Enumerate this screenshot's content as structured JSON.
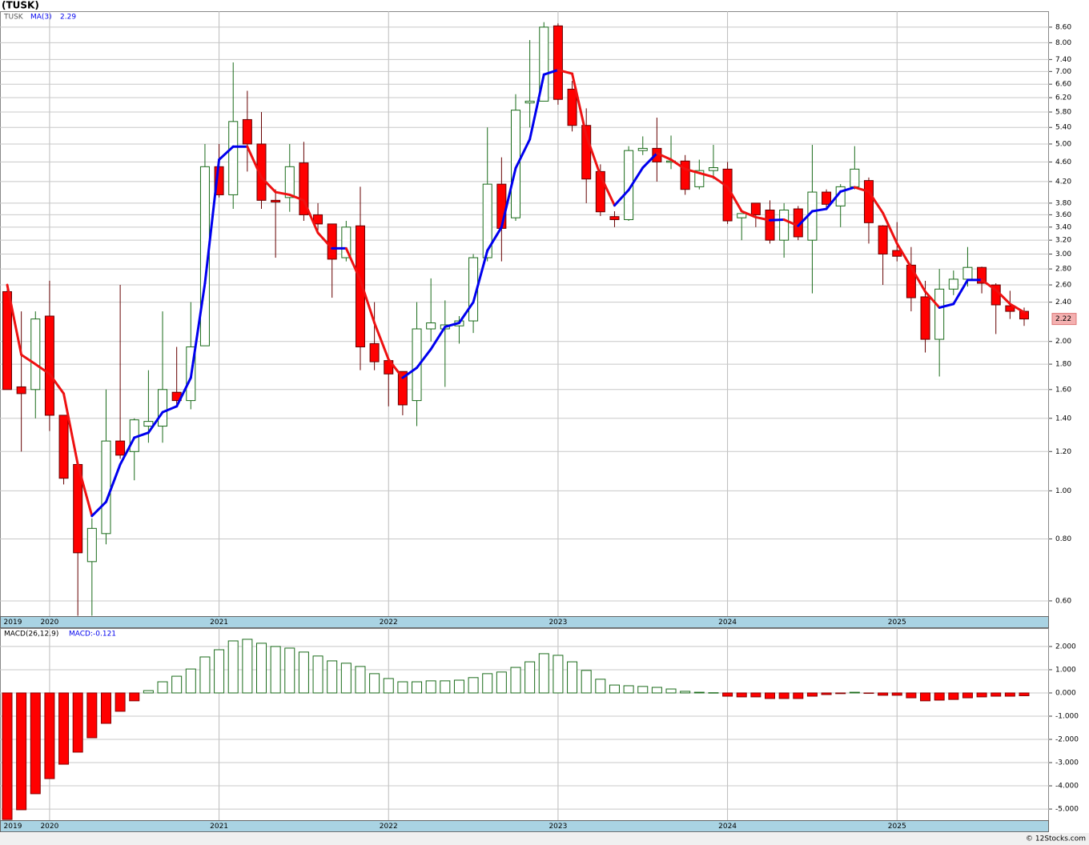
{
  "chart_data": [
    {
      "type": "candlestick",
      "title": "(TUSK)",
      "label": "TUSK",
      "log_scale": true,
      "grid": true,
      "categories": [
        "2019",
        null,
        null,
        "2020",
        null,
        null,
        null,
        null,
        null,
        null,
        null,
        null,
        null,
        null,
        null,
        "2021",
        null,
        null,
        null,
        null,
        null,
        null,
        null,
        null,
        null,
        null,
        null,
        "2022",
        null,
        null,
        null,
        null,
        null,
        null,
        null,
        null,
        null,
        null,
        null,
        "2023",
        null,
        null,
        null,
        null,
        null,
        null,
        null,
        null,
        null,
        null,
        null,
        "2024",
        null,
        null,
        null,
        null,
        null,
        null,
        null,
        null,
        null,
        null,
        null,
        "2025",
        null,
        null,
        null,
        null,
        null,
        null,
        null,
        null,
        null
      ],
      "open": [
        2.52,
        1.62,
        1.6,
        2.25,
        1.42,
        1.13,
        0.72,
        0.82,
        1.26,
        1.2,
        1.35,
        1.35,
        1.58,
        1.52,
        1.96,
        4.5,
        3.95,
        5.6,
        5.0,
        3.85,
        3.9,
        4.58,
        3.6,
        3.45,
        2.95,
        3.42,
        1.98,
        1.83,
        1.74,
        1.52,
        2.12,
        2.12,
        2.15,
        2.2,
        2.95,
        4.15,
        3.55,
        6.05,
        6.1,
        8.65,
        6.45,
        5.45,
        4.4,
        3.57,
        3.52,
        4.85,
        4.9,
        4.6,
        4.62,
        4.1,
        4.42,
        4.45,
        3.55,
        3.8,
        3.68,
        3.2,
        3.7,
        3.2,
        4.0,
        3.75,
        4.1,
        4.22,
        3.42,
        3.05,
        2.85,
        2.46,
        2.02,
        2.55,
        2.67,
        2.82,
        2.6,
        2.36,
        2.3
      ],
      "high": [
        2.58,
        2.3,
        2.3,
        2.65,
        1.42,
        1.13,
        0.88,
        1.6,
        2.6,
        1.4,
        1.75,
        2.3,
        1.95,
        2.4,
        5.0,
        5.0,
        7.3,
        6.4,
        5.8,
        4.05,
        5.0,
        5.05,
        3.8,
        3.45,
        3.5,
        4.1,
        2.4,
        1.85,
        1.74,
        2.4,
        2.68,
        2.42,
        2.25,
        3.0,
        5.4,
        4.7,
        6.3,
        8.1,
        8.8,
        8.75,
        6.7,
        5.9,
        4.55,
        3.66,
        4.95,
        5.18,
        5.65,
        5.2,
        4.75,
        4.65,
        4.98,
        4.6,
        3.62,
        3.8,
        3.85,
        3.8,
        3.75,
        4.98,
        4.05,
        4.15,
        4.95,
        4.28,
        3.43,
        3.48,
        3.1,
        2.65,
        2.8,
        2.78,
        3.1,
        2.83,
        2.62,
        2.53,
        2.34
      ],
      "low": [
        1.6,
        1.2,
        1.4,
        1.32,
        1.03,
        0.56,
        0.56,
        0.78,
        1.16,
        1.05,
        1.25,
        1.25,
        1.48,
        1.46,
        1.96,
        3.9,
        3.7,
        4.4,
        3.7,
        2.95,
        3.65,
        3.5,
        3.35,
        2.45,
        2.9,
        1.75,
        1.75,
        1.48,
        1.42,
        1.35,
        2.0,
        1.62,
        1.98,
        2.08,
        2.9,
        2.9,
        3.5,
        5.4,
        6.1,
        6.0,
        5.3,
        3.8,
        3.58,
        3.4,
        3.5,
        4.75,
        4.2,
        4.45,
        3.95,
        4.05,
        4.25,
        3.45,
        3.2,
        3.4,
        3.15,
        2.95,
        3.2,
        2.5,
        3.7,
        3.4,
        4.05,
        3.15,
        2.6,
        2.9,
        2.3,
        1.9,
        1.7,
        2.48,
        2.58,
        2.5,
        2.07,
        2.22,
        2.15
      ],
      "close": [
        1.6,
        1.57,
        2.22,
        1.42,
        1.06,
        0.75,
        0.84,
        1.26,
        1.18,
        1.39,
        1.38,
        1.6,
        1.52,
        1.95,
        4.5,
        3.95,
        5.55,
        5.0,
        3.85,
        3.82,
        4.5,
        3.6,
        3.45,
        2.93,
        3.4,
        1.95,
        1.82,
        1.72,
        1.49,
        2.12,
        2.18,
        2.16,
        2.2,
        2.95,
        4.15,
        3.38,
        5.85,
        6.1,
        8.6,
        6.15,
        5.45,
        4.25,
        3.65,
        3.52,
        4.85,
        4.9,
        4.6,
        4.62,
        4.05,
        4.42,
        4.48,
        3.5,
        3.62,
        3.6,
        3.2,
        3.68,
        3.25,
        4.0,
        3.78,
        4.1,
        4.45,
        3.47,
        3.0,
        2.97,
        2.45,
        2.02,
        2.55,
        2.67,
        2.82,
        2.62,
        2.37,
        2.3,
        2.22
      ],
      "close_label": "2.22",
      "up_color": "#1a6b1a",
      "down_color": "#ff0000",
      "series": [
        {
          "name": "MA(3)",
          "rising_color": "#0000ee",
          "falling_color": "#ee1111",
          "last_value_label": "2.29",
          "values": [
            2.6,
            1.88,
            1.8,
            1.72,
            1.57,
            1.13,
            0.89,
            0.95,
            1.13,
            1.28,
            1.31,
            1.44,
            1.48,
            1.69,
            2.62,
            4.65,
            4.94,
            4.94,
            4.28,
            4.0,
            3.95,
            3.85,
            3.31,
            3.08,
            3.08,
            2.66,
            2.18,
            1.84,
            1.69,
            1.77,
            1.93,
            2.14,
            2.18,
            2.4,
            3.05,
            3.4,
            4.47,
            5.11,
            6.9,
            7.05,
            6.93,
            5.2,
            4.32,
            3.76,
            4.04,
            4.48,
            4.79,
            4.65,
            4.45,
            4.37,
            4.29,
            4.1,
            3.66,
            3.56,
            3.51,
            3.52,
            3.42,
            3.66,
            3.7,
            4.01,
            4.09,
            4.01,
            3.63,
            3.15,
            2.82,
            2.52,
            2.34,
            2.38,
            2.66,
            2.66,
            2.54,
            2.38,
            2.29
          ]
        }
      ],
      "ylim": [
        0.559,
        9.26
      ],
      "yticks": [
        {
          "value": 0.6,
          "label": "0.60"
        },
        {
          "value": 0.8,
          "label": "0.80"
        },
        {
          "value": 1,
          "label": "1.00"
        },
        {
          "value": 1.2,
          "label": "1.20"
        },
        {
          "value": 1.4,
          "label": "1.40"
        },
        {
          "value": 1.6,
          "label": "1.60"
        },
        {
          "value": 1.8,
          "label": "1.80"
        },
        {
          "value": 2,
          "label": "2.00"
        },
        {
          "value": 2.4,
          "label": "2.40"
        },
        {
          "value": 2.6,
          "label": "2.60"
        },
        {
          "value": 2.8,
          "label": "2.80"
        },
        {
          "value": 3,
          "label": "3.00"
        },
        {
          "value": 3.2,
          "label": "3.20"
        },
        {
          "value": 3.4,
          "label": "3.40"
        },
        {
          "value": 3.6,
          "label": "3.60"
        },
        {
          "value": 3.8,
          "label": "3.80"
        },
        {
          "value": 4.2,
          "label": "4.20"
        },
        {
          "value": 4.6,
          "label": "4.60"
        },
        {
          "value": 5,
          "label": "5.00"
        },
        {
          "value": 5.4,
          "label": "5.40"
        },
        {
          "value": 5.8,
          "label": "5.80"
        },
        {
          "value": 6.2,
          "label": "6.20"
        },
        {
          "value": 6.6,
          "label": "6.60"
        },
        {
          "value": 7,
          "label": "7.00"
        },
        {
          "value": 7.4,
          "label": "7.40"
        },
        {
          "value": 8,
          "label": "8.00"
        },
        {
          "value": 8.6,
          "label": "8.60"
        }
      ]
    },
    {
      "type": "bar",
      "title": "MACD(26,12,9)",
      "value_label": "MACD:-0.121",
      "grid": true,
      "positive_color": "#1a6b1a",
      "negative_color": "#ff0000",
      "values": [
        -5.45,
        -5.03,
        -4.34,
        -3.69,
        -3.07,
        -2.55,
        -1.93,
        -1.31,
        -0.79,
        -0.34,
        0.1,
        0.48,
        0.72,
        1.03,
        1.55,
        1.86,
        2.24,
        2.31,
        2.14,
        2.0,
        1.93,
        1.76,
        1.59,
        1.38,
        1.28,
        1.14,
        0.83,
        0.62,
        0.48,
        0.48,
        0.52,
        0.52,
        0.55,
        0.66,
        0.83,
        0.9,
        1.1,
        1.34,
        1.69,
        1.62,
        1.34,
        0.97,
        0.59,
        0.34,
        0.31,
        0.28,
        0.24,
        0.17,
        0.07,
        0.03,
        0.01,
        -0.14,
        -0.17,
        -0.17,
        -0.24,
        -0.24,
        -0.24,
        -0.14,
        -0.07,
        -0.03,
        0.03,
        -0.02,
        -0.1,
        -0.1,
        -0.21,
        -0.34,
        -0.31,
        -0.28,
        -0.21,
        -0.17,
        -0.14,
        -0.14,
        -0.121
      ],
      "ylim": [
        -5.48,
        2.79
      ],
      "yticks": [
        {
          "value": -5,
          "label": "-5.000"
        },
        {
          "value": -4,
          "label": "-4.000"
        },
        {
          "value": -3,
          "label": "-3.000"
        },
        {
          "value": -2,
          "label": "-2.000"
        },
        {
          "value": -1,
          "label": "-1.000"
        },
        {
          "value": 0,
          "label": "0.000"
        },
        {
          "value": 1,
          "label": "1.000"
        },
        {
          "value": 2,
          "label": "2.000"
        }
      ]
    }
  ],
  "source": "© 12Stocks.com"
}
